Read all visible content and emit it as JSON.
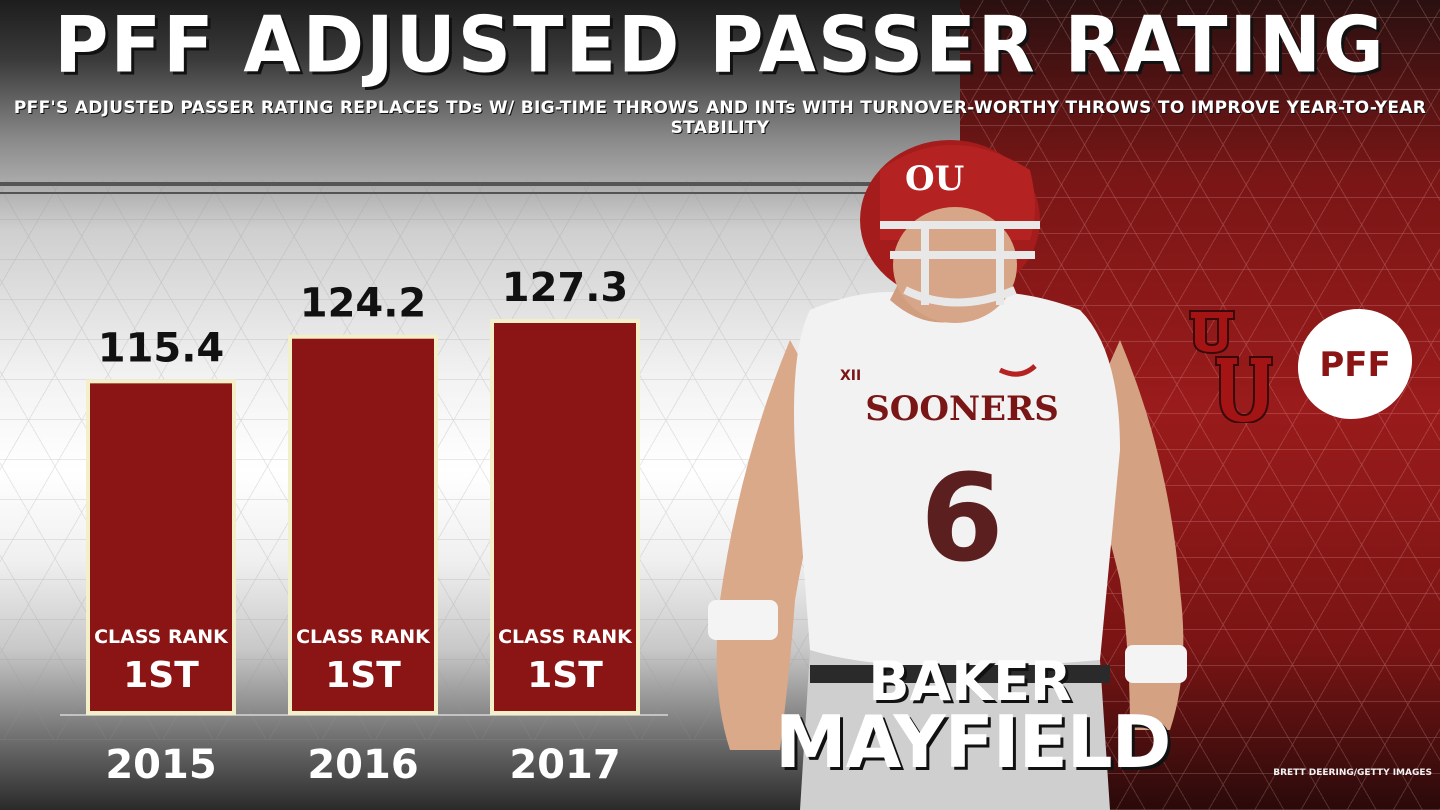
{
  "header": {
    "title": "PFF ADJUSTED PASSER RATING",
    "subtitle": "PFF'S ADJUSTED PASSER RATING REPLACES TDs W/ BIG-TIME THROWS AND INTs WITH TURNOVER-WORTHY THROWS TO IMPROVE YEAR-TO-YEAR STABILITY"
  },
  "chart_data": {
    "type": "bar",
    "categories": [
      "2015",
      "2016",
      "2017"
    ],
    "values": [
      115.4,
      124.2,
      127.3
    ],
    "value_labels": [
      "115.4",
      "124.2",
      "127.3"
    ],
    "bar_annotations": [
      {
        "label": "CLASS RANK",
        "value": "1ST"
      },
      {
        "label": "CLASS RANK",
        "value": "1ST"
      },
      {
        "label": "CLASS RANK",
        "value": "1ST"
      }
    ],
    "grid": false,
    "bar_color": "#8b1414",
    "bar_border_color": "#f3efc8"
  },
  "player": {
    "first_name": "BAKER",
    "last_name": "MAYFIELD",
    "jersey_text": "SOONERS",
    "jersey_number": "6",
    "conference_mark": "XII"
  },
  "logos": {
    "team": "OU",
    "brand": "PFF"
  },
  "photo_credit": "BRETT DEERING/GETTY IMAGES",
  "colors": {
    "crimson": "#8b1414",
    "cream": "#f3efc8",
    "white": "#ffffff"
  }
}
